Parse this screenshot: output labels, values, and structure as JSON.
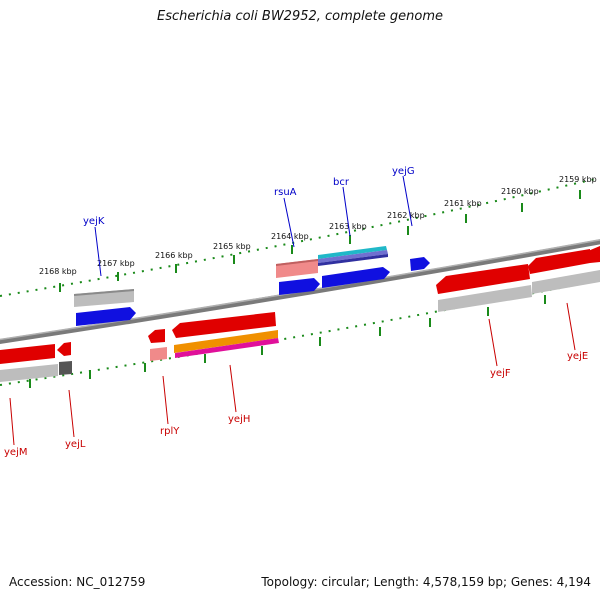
{
  "title": "Escherichia coli BW2952, complete genome",
  "footer": {
    "accession": "Accession: NC_012759",
    "summary": "Topology: circular; Length: 4,578,159 bp; Genes: 4,194"
  },
  "colors": {
    "forward_cds": "#1010e0",
    "reverse_cds": "#e00000",
    "backbone": "#7a7a7a",
    "tick": "#1a8a1a",
    "label_forward": "#0000c8",
    "label_reverse": "#c80000"
  },
  "ruler": {
    "unit": "kbp",
    "ticks": [
      {
        "kbp": 2168,
        "label": "2168 kbp"
      },
      {
        "kbp": 2167,
        "label": "2167 kbp"
      },
      {
        "kbp": 2166,
        "label": "2166 kbp"
      },
      {
        "kbp": 2165,
        "label": "2165 kbp"
      },
      {
        "kbp": 2164,
        "label": "2164 kbp"
      },
      {
        "kbp": 2163,
        "label": "2163 kbp"
      },
      {
        "kbp": 2162,
        "label": "2162 kbp"
      },
      {
        "kbp": 2161,
        "label": "2161 kbp"
      },
      {
        "kbp": 2160,
        "label": "2160 kbp"
      },
      {
        "kbp": 2159,
        "label": "2159 kbp"
      }
    ]
  },
  "genes": {
    "forward": [
      "yejK",
      "rsuA",
      "bcr",
      "yejG"
    ],
    "reverse": [
      "yejM",
      "yejL",
      "rplY",
      "yejH",
      "yejF",
      "yejE"
    ]
  }
}
